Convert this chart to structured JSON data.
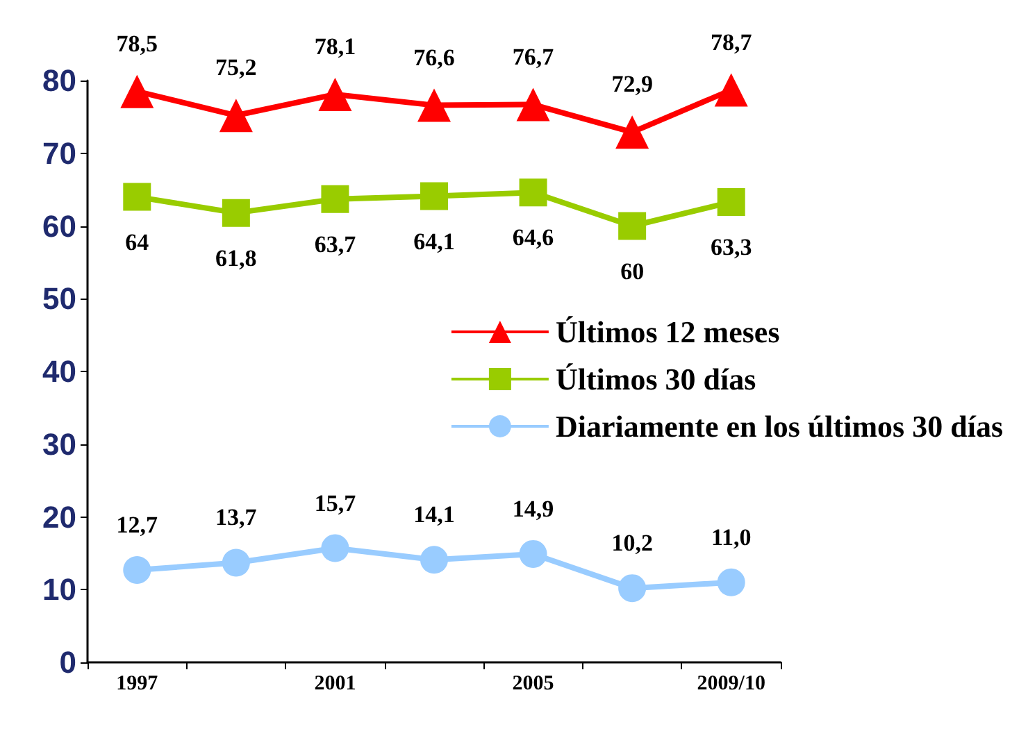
{
  "chart_data": {
    "type": "line",
    "categories": [
      "1997",
      null,
      "2001",
      null,
      "2005",
      null,
      "2009/10"
    ],
    "ylim": [
      0,
      80
    ],
    "yticks": [
      0,
      10,
      20,
      30,
      40,
      50,
      60,
      70,
      80
    ],
    "grid": false,
    "legend": "right",
    "data_labels": true,
    "series": [
      {
        "name": "Últimos 12 meses",
        "color": "#ff0000",
        "marker": "triangle",
        "values": [
          78.5,
          75.2,
          78.1,
          76.6,
          76.7,
          72.9,
          78.7
        ],
        "value_labels": [
          "78,5",
          "75,2",
          "78,1",
          "76,6",
          "76,7",
          "72,9",
          "78,7"
        ]
      },
      {
        "name": "Últimos 30 días",
        "color": "#99cc00",
        "marker": "square",
        "values": [
          64,
          61.8,
          63.7,
          64.1,
          64.6,
          60,
          63.3
        ],
        "value_labels": [
          "64",
          "61,8",
          "63,7",
          "64,1",
          "64,6",
          "60",
          "63,3"
        ]
      },
      {
        "name": "Diariamente en los últimos 30 días",
        "color": "#99ccff",
        "marker": "circle",
        "values": [
          12.7,
          13.7,
          15.7,
          14.1,
          14.9,
          10.2,
          11.0
        ],
        "value_labels": [
          "12,7",
          "13,7",
          "15,7",
          "14,1",
          "14,9",
          "10,2",
          "11,0"
        ]
      }
    ]
  }
}
